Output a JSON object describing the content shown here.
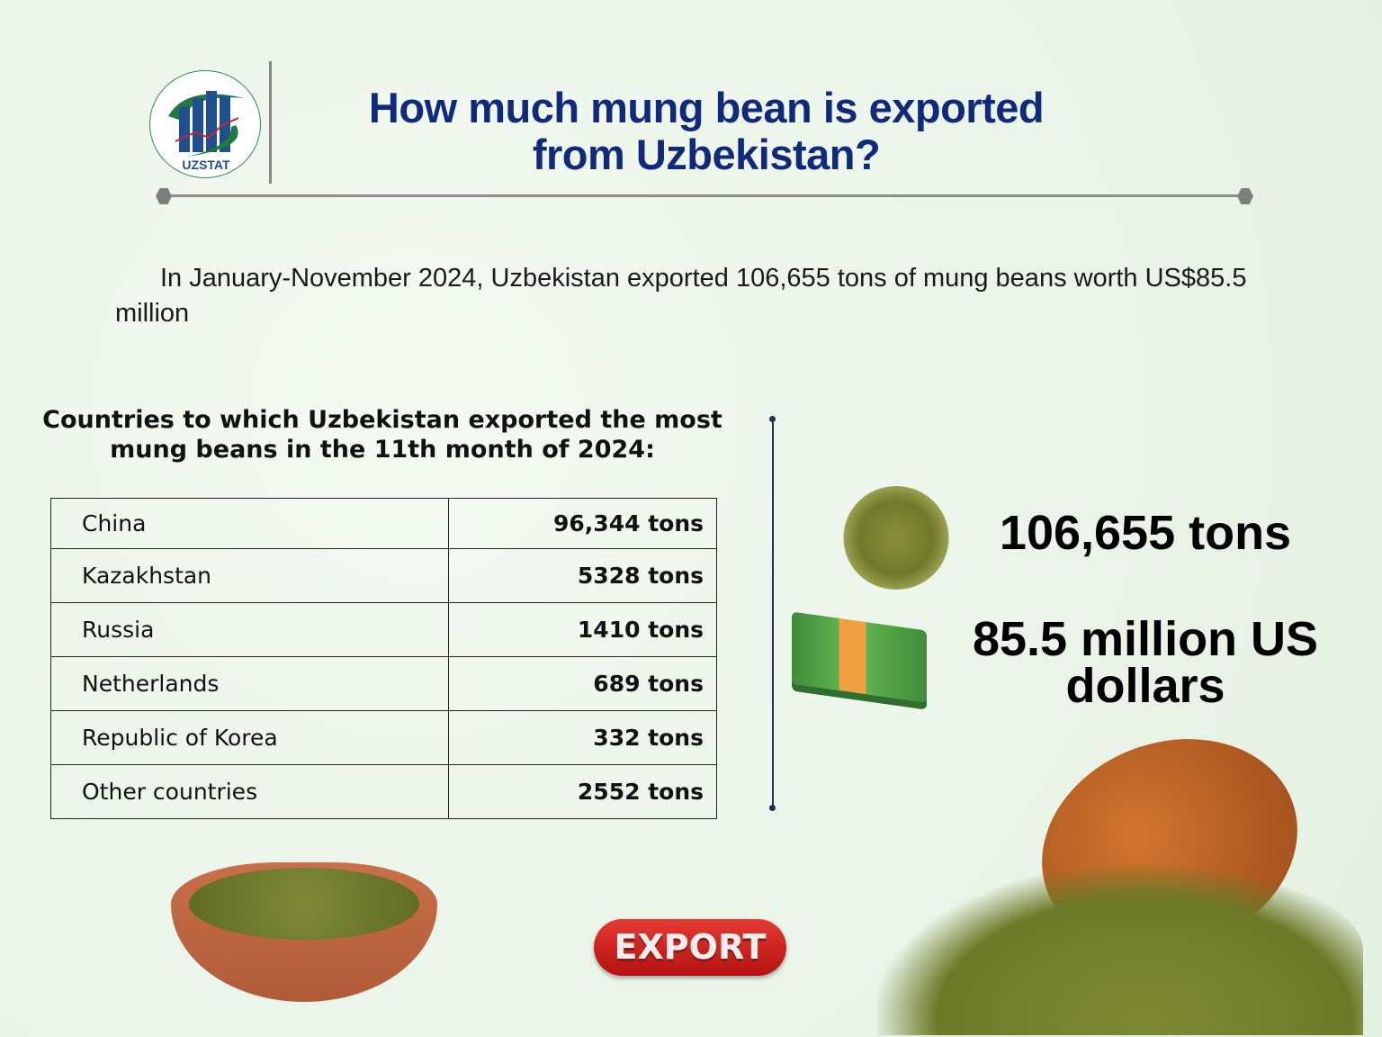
{
  "logo": {
    "text": "UZSTAT"
  },
  "header": {
    "title_line1": "How much mung bean is exported",
    "title_line2": "from Uzbekistan?"
  },
  "intro": "In January-November 2024, Uzbekistan exported 106,655 tons of mung beans worth US$85.5 million",
  "section": {
    "heading": "Countries to which Uzbekistan exported the most mung beans in the 11th month of 2024:"
  },
  "table": {
    "rows": [
      {
        "country": "China",
        "value": "96,344 tons"
      },
      {
        "country": "Kazakhstan",
        "value": "5328 tons"
      },
      {
        "country": "Russia",
        "value": "1410 tons"
      },
      {
        "country": "Netherlands",
        "value": "689 tons"
      },
      {
        "country": "Republic of Korea",
        "value": "332 tons"
      },
      {
        "country": "Other countries",
        "value": "2552 tons"
      }
    ]
  },
  "stats": {
    "tons": "106,655 tons",
    "dollars": "85.5 million US dollars"
  },
  "button": {
    "label": "EXPORT"
  },
  "colors": {
    "title": "#0f2a7c",
    "button": "#d42623",
    "background": "#eaf4e8"
  }
}
